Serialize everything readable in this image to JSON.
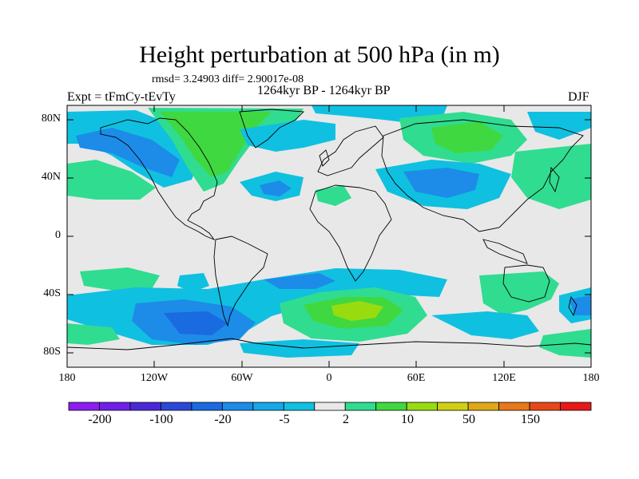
{
  "title": "Height perturbation at 500 hPa (in m)",
  "stats_text": "rmsd= 3.24903 diff= 2.90017e-08",
  "period_text": "1264kyr BP - 1264kyr BP",
  "experiment_text": "Expt = tFmCy-tEvTy",
  "season_text": "DJF",
  "lat_labels": [
    "80N",
    "40N",
    "0",
    "40S",
    "80S"
  ],
  "lon_labels": [
    "180",
    "120W",
    "60W",
    "0",
    "60E",
    "120E",
    "180"
  ],
  "colorbar": {
    "colors": [
      "#8c1ef0",
      "#7020e8",
      "#4a28d8",
      "#2a48d8",
      "#1a6ae0",
      "#1c8ce8",
      "#14a8e8",
      "#10c0e0",
      "#e8e8e8",
      "#30dc90",
      "#40d840",
      "#98dc10",
      "#d0d010",
      "#e0a818",
      "#e87818",
      "#e84818",
      "#e81818"
    ],
    "labels": [
      "-200",
      "-100",
      "-20",
      "-5",
      "2",
      "10",
      "50",
      "150"
    ]
  },
  "field_colors": {
    "background": "#e8e8e8",
    "light_blue": "#10c0e0",
    "mid_blue": "#1c8ce8",
    "dark_blue": "#1a6ae0",
    "light_green": "#30dc90",
    "green": "#40d840",
    "yellow_green": "#98dc10"
  }
}
